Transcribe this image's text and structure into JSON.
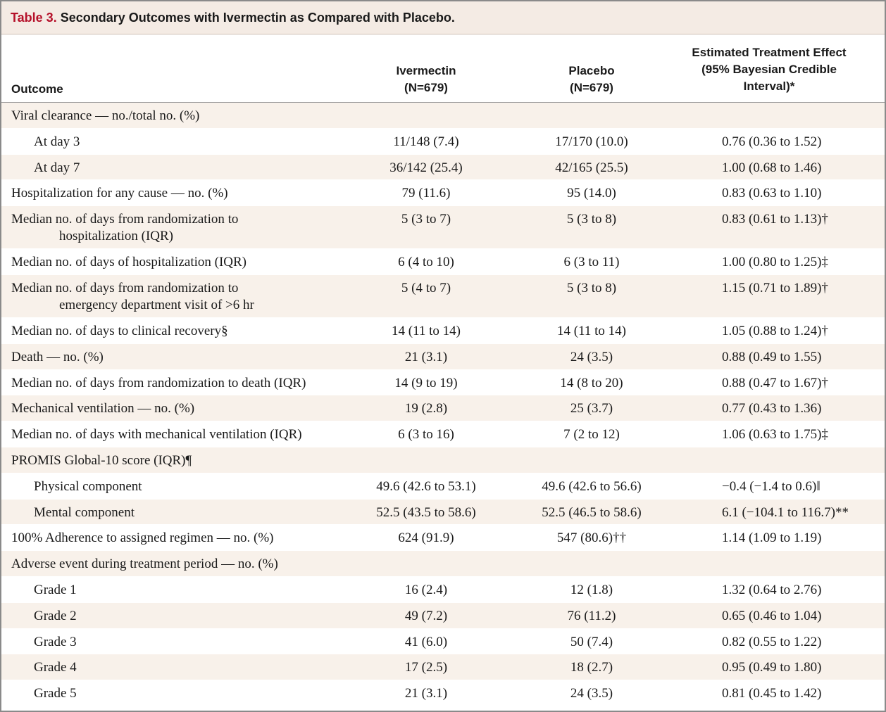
{
  "title": {
    "label": "Table 3.",
    "text": "Secondary Outcomes with Ivermectin as Compared with Placebo."
  },
  "columns": {
    "outcome": "Outcome",
    "ivermectin": [
      "Ivermectin",
      "(N=679)"
    ],
    "placebo": [
      "Placebo",
      "(N=679)"
    ],
    "effect": [
      "Estimated Treatment Effect",
      "(95% Bayesian Credible",
      "Interval)*"
    ]
  },
  "rows": [
    {
      "outcome": "Viral clearance — no./total no. (%)",
      "ivermectin": "",
      "placebo": "",
      "effect": "",
      "shade": true
    },
    {
      "outcome": "At day 3",
      "sub": true,
      "ivermectin": "11/148 (7.4)",
      "placebo": "17/170 (10.0)",
      "effect": "0.76 (0.36 to 1.52)"
    },
    {
      "outcome": "At day 7",
      "sub": true,
      "ivermectin": "36/142 (25.4)",
      "placebo": "42/165 (25.5)",
      "effect": "1.00 (0.68 to 1.46)",
      "shade": true
    },
    {
      "outcome": "Hospitalization for any cause — no. (%)",
      "ivermectin": "79 (11.6)",
      "placebo": "95 (14.0)",
      "effect": "0.83 (0.63 to 1.10)"
    },
    {
      "outcome": "Median no. of days from randomization to",
      "outcome_cont": "hospitalization (IQR)",
      "ivermectin": "5 (3 to 7)",
      "placebo": "5 (3 to 8)",
      "effect": "0.83 (0.61 to 1.13)†",
      "shade": true
    },
    {
      "outcome": "Median no. of days of hospitalization (IQR)",
      "ivermectin": "6 (4 to 10)",
      "placebo": "6 (3 to 11)",
      "effect": "1.00 (0.80 to 1.25)‡"
    },
    {
      "outcome": "Median no. of days from randomization to",
      "outcome_cont": "emergency department visit of >6 hr",
      "ivermectin": "5 (4 to 7)",
      "placebo": "5 (3 to 8)",
      "effect": "1.15 (0.71 to 1.89)†",
      "shade": true
    },
    {
      "outcome": "Median no. of days to clinical recovery§",
      "ivermectin": "14 (11 to 14)",
      "placebo": "14 (11 to 14)",
      "effect": "1.05 (0.88 to 1.24)†"
    },
    {
      "outcome": "Death — no. (%)",
      "ivermectin": "21 (3.1)",
      "placebo": "24 (3.5)",
      "effect": "0.88 (0.49 to 1.55)",
      "shade": true
    },
    {
      "outcome": "Median no. of days from randomization to death (IQR)",
      "ivermectin": "14 (9 to 19)",
      "placebo": "14 (8 to 20)",
      "effect": "0.88 (0.47 to 1.67)†"
    },
    {
      "outcome": "Mechanical ventilation — no. (%)",
      "ivermectin": "19 (2.8)",
      "placebo": "25 (3.7)",
      "effect": "0.77 (0.43 to 1.36)",
      "shade": true
    },
    {
      "outcome": "Median no. of days with mechanical ventilation (IQR)",
      "ivermectin": "6 (3 to 16)",
      "placebo": "7 (2 to 12)",
      "effect": "1.06 (0.63 to 1.75)‡"
    },
    {
      "outcome": "PROMIS Global-10 score (IQR)¶",
      "ivermectin": "",
      "placebo": "",
      "effect": "",
      "shade": true
    },
    {
      "outcome": "Physical component",
      "sub": true,
      "ivermectin": "49.6 (42.6 to 53.1)",
      "placebo": "49.6 (42.6 to 56.6)",
      "effect": "−0.4 (−1.4 to 0.6)‖"
    },
    {
      "outcome": "Mental component",
      "sub": true,
      "ivermectin": "52.5 (43.5 to 58.6)",
      "placebo": "52.5 (46.5 to 58.6)",
      "effect": "6.1 (−104.1 to 116.7)**",
      "shade": true
    },
    {
      "outcome": "100% Adherence to assigned regimen — no. (%)",
      "ivermectin": "624 (91.9)",
      "placebo": "547 (80.6)††",
      "effect": "1.14 (1.09 to 1.19)"
    },
    {
      "outcome": "Adverse event during treatment period — no. (%)",
      "ivermectin": "",
      "placebo": "",
      "effect": "",
      "shade": true
    },
    {
      "outcome": "Grade 1",
      "sub": true,
      "ivermectin": "16 (2.4)",
      "placebo": "12 (1.8)",
      "effect": "1.32 (0.64 to 2.76)"
    },
    {
      "outcome": "Grade 2",
      "sub": true,
      "ivermectin": "49 (7.2)",
      "placebo": "76 (11.2)",
      "effect": "0.65 (0.46 to 1.04)",
      "shade": true
    },
    {
      "outcome": "Grade 3",
      "sub": true,
      "ivermectin": "41 (6.0)",
      "placebo": "50 (7.4)",
      "effect": "0.82 (0.55 to 1.22)"
    },
    {
      "outcome": "Grade 4",
      "sub": true,
      "ivermectin": "17 (2.5)",
      "placebo": "18 (2.7)",
      "effect": "0.95 (0.49 to 1.80)",
      "shade": true
    },
    {
      "outcome": "Grade 5",
      "sub": true,
      "ivermectin": "21 (3.1)",
      "placebo": "24 (3.5)",
      "effect": "0.81 (0.45 to 1.42)"
    }
  ]
}
